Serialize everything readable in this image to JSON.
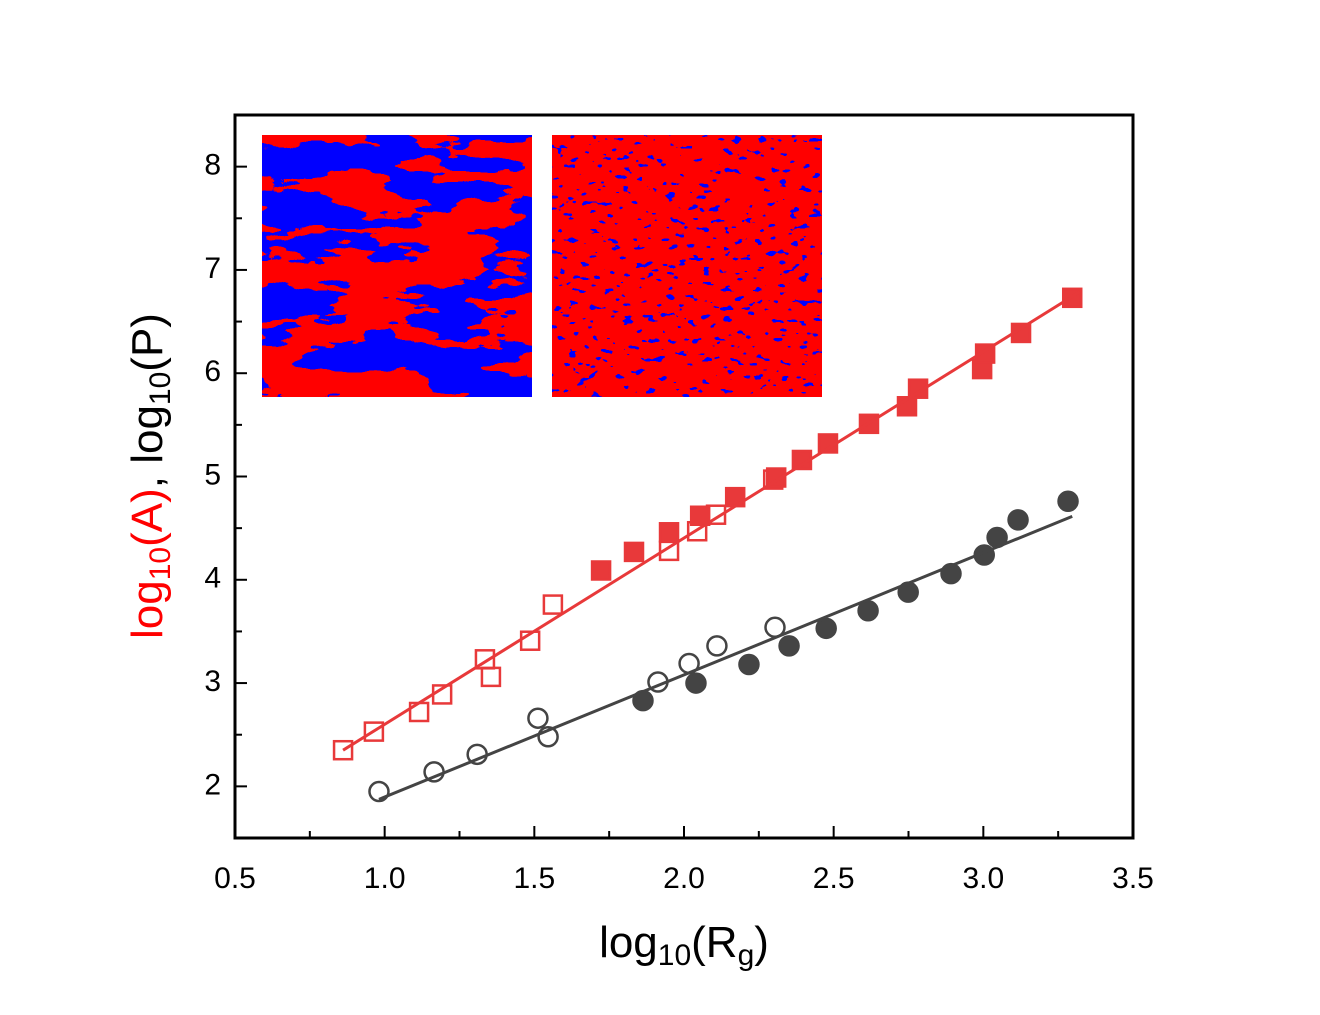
{
  "chart_data": {
    "type": "scatter",
    "xlabel": [
      {
        "text": "log"
      },
      {
        "text": "10",
        "sub": true
      },
      {
        "text": "(R"
      },
      {
        "text": "g",
        "sub": true
      },
      {
        "text": ")"
      }
    ],
    "ylabel": [
      {
        "text": "log",
        "color": "#ff0000"
      },
      {
        "text": "10",
        "sub": true,
        "color": "#ff0000"
      },
      {
        "text": "(A)",
        "color": "#ff0000"
      },
      {
        "text": ", log",
        "color": "#000000"
      },
      {
        "text": "10",
        "sub": true,
        "color": "#000000"
      },
      {
        "text": "(P)",
        "color": "#000000"
      }
    ],
    "xlim": [
      0.5,
      3.5
    ],
    "ylim": [
      1.5,
      8.5
    ],
    "xticks": [
      {
        "value": 0.5,
        "label": "0.5"
      },
      {
        "value": 1,
        "label": "1.0"
      },
      {
        "value": 1.5,
        "label": "1.5"
      },
      {
        "value": 2,
        "label": "2.0"
      },
      {
        "value": 2.5,
        "label": "2.5"
      },
      {
        "value": 3,
        "label": "3.0"
      },
      {
        "value": 3.5,
        "label": "3.5"
      }
    ],
    "xminor": [
      0.75,
      1.25,
      1.75,
      2.25,
      2.75,
      3.25
    ],
    "yticks": [
      2,
      3,
      4,
      5,
      6,
      7,
      8
    ],
    "yminor": [
      2.5,
      3.5,
      4.5,
      5.5,
      6.5,
      7.5
    ],
    "series": [
      {
        "marker": "square",
        "filled": false,
        "color": "#e8393a",
        "x": [
          0.861,
          0.964,
          1.115,
          1.192,
          1.335,
          1.355,
          1.486,
          1.562,
          1.95,
          2.044,
          2.107,
          2.298
        ],
        "values": [
          2.35,
          2.53,
          2.72,
          2.89,
          3.23,
          3.06,
          3.41,
          3.76,
          4.28,
          4.47,
          4.63,
          4.97
        ]
      },
      {
        "marker": "square",
        "filled": true,
        "color": "#e8393a",
        "x": [
          1.723,
          1.833,
          1.95,
          2.054,
          2.171,
          2.308,
          2.394,
          2.481,
          2.618,
          2.745,
          2.782,
          2.996,
          3.006,
          3.126,
          3.297
        ],
        "values": [
          4.09,
          4.27,
          4.46,
          4.62,
          4.8,
          4.99,
          5.16,
          5.32,
          5.51,
          5.68,
          5.85,
          6.04,
          6.19,
          6.39,
          6.73
        ]
      },
      {
        "marker": "circle",
        "filled": false,
        "color": "#444444",
        "x": [
          0.981,
          1.165,
          1.309,
          1.512,
          1.546,
          1.913,
          2.017,
          2.11,
          2.304
        ],
        "values": [
          1.95,
          2.14,
          2.31,
          2.66,
          2.48,
          3.01,
          3.19,
          3.36,
          3.54
        ]
      },
      {
        "marker": "circle",
        "filled": true,
        "color": "#444444",
        "x": [
          1.863,
          2.04,
          2.217,
          2.351,
          2.475,
          2.615,
          2.749,
          2.892,
          3.003,
          3.046,
          3.116,
          3.283
        ],
        "values": [
          2.83,
          3.0,
          3.18,
          3.36,
          3.53,
          3.7,
          3.88,
          4.06,
          4.24,
          4.41,
          4.58,
          4.76
        ]
      },
      {
        "marker": "line",
        "color": "#e8393a",
        "x": [
          0.861,
          3.323
        ],
        "values": [
          2.35,
          6.79
        ]
      },
      {
        "marker": "line",
        "color": "#444444",
        "x": [
          0.981,
          3.297
        ],
        "values": [
          1.874,
          4.614
        ]
      }
    ]
  }
}
